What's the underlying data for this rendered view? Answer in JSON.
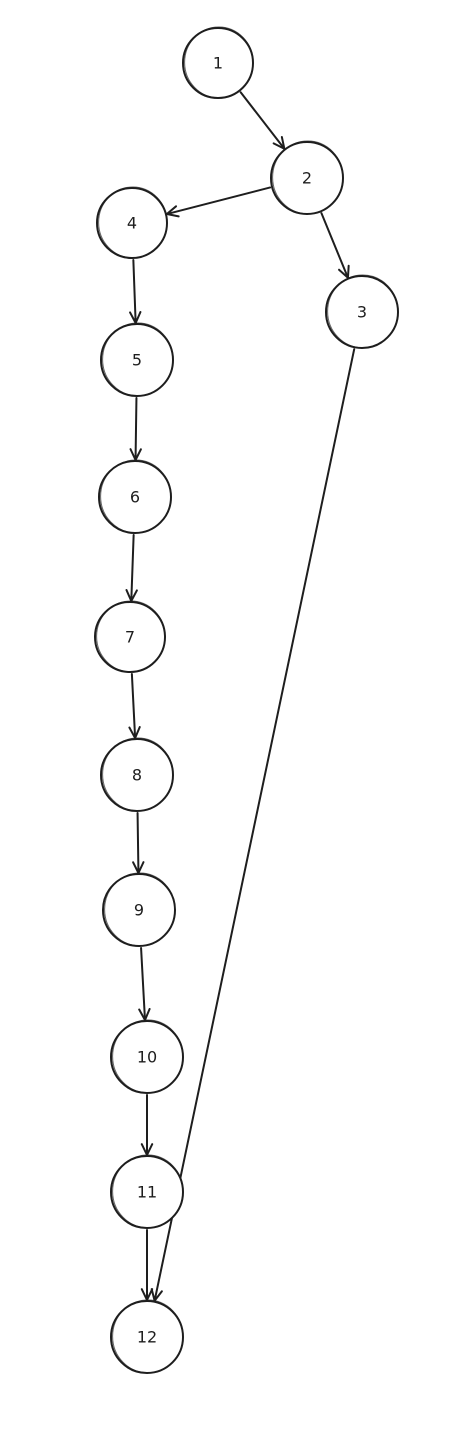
{
  "diagram": {
    "type": "directed-graph",
    "nodes": [
      {
        "id": "1",
        "label": "1"
      },
      {
        "id": "2",
        "label": "2"
      },
      {
        "id": "3",
        "label": "3"
      },
      {
        "id": "4",
        "label": "4"
      },
      {
        "id": "5",
        "label": "5"
      },
      {
        "id": "6",
        "label": "6"
      },
      {
        "id": "7",
        "label": "7"
      },
      {
        "id": "8",
        "label": "8"
      },
      {
        "id": "9",
        "label": "9"
      },
      {
        "id": "10",
        "label": "10"
      },
      {
        "id": "11",
        "label": "11"
      },
      {
        "id": "12",
        "label": "12"
      }
    ],
    "edges": [
      {
        "from": "1",
        "to": "2"
      },
      {
        "from": "2",
        "to": "4"
      },
      {
        "from": "2",
        "to": "3"
      },
      {
        "from": "4",
        "to": "5"
      },
      {
        "from": "5",
        "to": "6"
      },
      {
        "from": "6",
        "to": "7"
      },
      {
        "from": "7",
        "to": "8"
      },
      {
        "from": "8",
        "to": "9"
      },
      {
        "from": "9",
        "to": "10"
      },
      {
        "from": "10",
        "to": "11"
      },
      {
        "from": "11",
        "to": "12"
      },
      {
        "from": "3",
        "to": "12"
      }
    ],
    "colors": {
      "stroke": "#1e1e1e",
      "background": "#ffffff"
    }
  }
}
